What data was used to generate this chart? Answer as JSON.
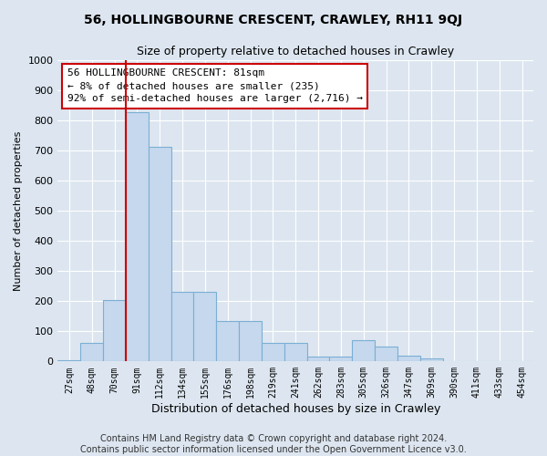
{
  "title": "56, HOLLINGBOURNE CRESCENT, CRAWLEY, RH11 9QJ",
  "subtitle": "Size of property relative to detached houses in Crawley",
  "xlabel": "Distribution of detached houses by size in Crawley",
  "ylabel": "Number of detached properties",
  "categories": [
    "27sqm",
    "48sqm",
    "70sqm",
    "91sqm",
    "112sqm",
    "134sqm",
    "155sqm",
    "176sqm",
    "198sqm",
    "219sqm",
    "241sqm",
    "262sqm",
    "283sqm",
    "305sqm",
    "326sqm",
    "347sqm",
    "369sqm",
    "390sqm",
    "411sqm",
    "433sqm",
    "454sqm"
  ],
  "values": [
    3,
    60,
    205,
    825,
    710,
    230,
    230,
    135,
    135,
    60,
    60,
    15,
    15,
    70,
    50,
    20,
    10,
    0,
    0,
    0,
    0
  ],
  "bar_color": "#c5d8ed",
  "bar_edge_color": "#7bafd4",
  "vline_color": "#cc0000",
  "vline_pos": 2.5,
  "annotation_text": "56 HOLLINGBOURNE CRESCENT: 81sqm\n← 8% of detached houses are smaller (235)\n92% of semi-detached houses are larger (2,716) →",
  "annotation_box_facecolor": "#ffffff",
  "annotation_box_edgecolor": "#cc0000",
  "ylim": [
    0,
    1000
  ],
  "yticks": [
    0,
    100,
    200,
    300,
    400,
    500,
    600,
    700,
    800,
    900,
    1000
  ],
  "footer_line1": "Contains HM Land Registry data © Crown copyright and database right 2024.",
  "footer_line2": "Contains public sector information licensed under the Open Government Licence v3.0.",
  "bg_color": "#dde6f0",
  "plot_bg_color": "#dde6f0",
  "title_fontsize": 10,
  "subtitle_fontsize": 9,
  "footer_fontsize": 7
}
